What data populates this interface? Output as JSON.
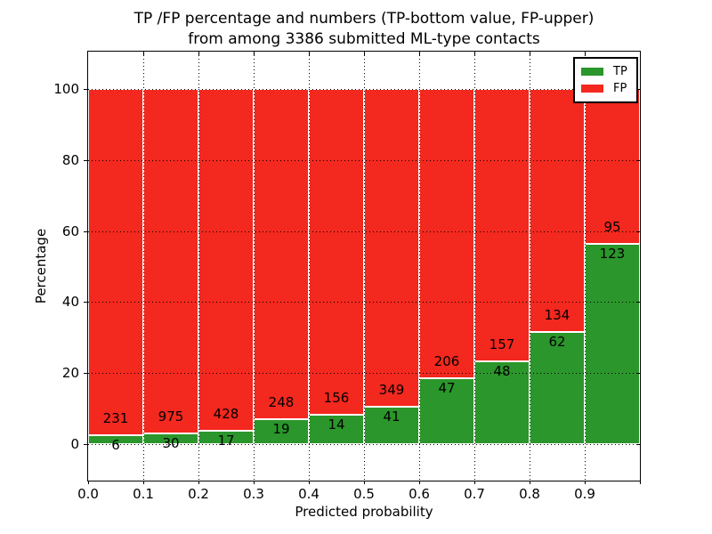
{
  "chart_data": {
    "type": "bar",
    "subtype": "stacked-100-percent",
    "title": "TP /FP percentage and numbers (TP-bottom value, FP-upper)\nfrom among 3386 submitted ML-type contacts",
    "title_lines": [
      "TP /FP percentage and numbers (TP-bottom value, FP-upper)",
      "from among 3386 submitted ML-type contacts"
    ],
    "xlabel": "Predicted probability",
    "ylabel": "Percentage",
    "total_contacts": 3386,
    "categories": [
      "0.0-0.1",
      "0.1-0.2",
      "0.2-0.3",
      "0.3-0.4",
      "0.4-0.5",
      "0.5-0.6",
      "0.6-0.7",
      "0.7-0.8",
      "0.8-0.9",
      "0.9-1.0"
    ],
    "series": [
      {
        "name": "TP",
        "color": "#2b962b",
        "counts": [
          6,
          30,
          17,
          19,
          14,
          41,
          47,
          48,
          62,
          123
        ]
      },
      {
        "name": "FP",
        "color": "#f3281e",
        "counts": [
          231,
          975,
          428,
          248,
          156,
          349,
          206,
          157,
          134,
          95
        ]
      }
    ],
    "tp_percent_of_bin": [
      2.5,
      3.0,
      3.8,
      7.1,
      8.2,
      10.5,
      18.6,
      23.4,
      31.6,
      56.4
    ],
    "bar_value_labels": "FP count above TP/FP boundary, TP count below boundary",
    "xticks": [
      "0.0",
      "0.1",
      "0.2",
      "0.3",
      "0.4",
      "0.5",
      "0.6",
      "0.7",
      "0.8",
      "0.9"
    ],
    "yticks": [
      0,
      20,
      40,
      60,
      80,
      100
    ],
    "xlim": [
      0.0,
      1.0
    ],
    "ylim": [
      -10.7,
      110.7
    ],
    "grid": {
      "style": "dotted",
      "color": "#000000",
      "drawn_over_bars": true
    },
    "legend": {
      "position": "upper-right",
      "entries": [
        {
          "label": "TP",
          "color": "#2b962b"
        },
        {
          "label": "FP",
          "color": "#f3281e"
        }
      ]
    },
    "colors": {
      "tp": "#2b962b",
      "fp": "#f3281e",
      "background": "#ffffff",
      "axis": "#000000",
      "bar_edge": "#ffffff"
    }
  }
}
